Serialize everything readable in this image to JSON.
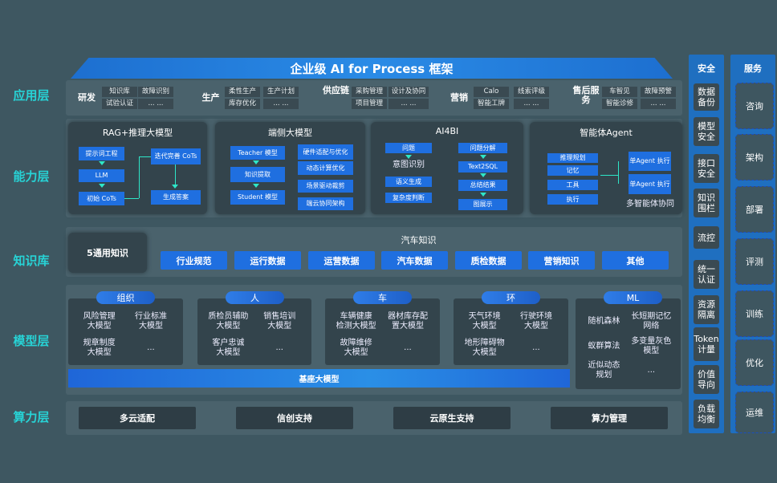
{
  "title": "企业级 AI for Process 框架",
  "layers": [
    "应用层",
    "能力层",
    "知识库",
    "模型层",
    "算力层"
  ],
  "app": [
    {
      "name": "研发",
      "cells": [
        "知识库",
        "故障识别",
        "试验认证",
        "... ..."
      ]
    },
    {
      "name": "生产",
      "cells": [
        "柔性生产",
        "生产计划",
        "库存优化",
        "... ..."
      ]
    },
    {
      "name": "供应链",
      "cells": [
        "采购管理",
        "设计及协同",
        "项目管理",
        "... ..."
      ]
    },
    {
      "name": "营销",
      "cells": [
        "Calo",
        "线索评级",
        "智能工牌",
        "... ..."
      ]
    },
    {
      "name": "售后服务",
      "cells": [
        "车智见",
        "故障预警",
        "智能诊修",
        "... ..."
      ]
    }
  ],
  "capability": {
    "rag": {
      "title": "RAG+推理大模型",
      "items": [
        "提示词工程",
        "LLM",
        "初始 CoTs",
        "迭代完善 CoTs",
        "生成答案"
      ]
    },
    "edge": {
      "title": "端侧大模型",
      "items": [
        "Teacher 模型",
        "知识提取",
        "Student 模型",
        "硬件适配与优化",
        "动态计算优化",
        "场景驱动裁剪",
        "端云协同架构"
      ]
    },
    "ai4bi": {
      "title": "AI4BI",
      "items": [
        "问题",
        "意图识别",
        "语义生成",
        "复杂度判断",
        "问题分解",
        "Text2SQL",
        "总结结果",
        "图展示"
      ]
    },
    "agent": {
      "title": "智能体Agent",
      "items": [
        "推理规划",
        "记忆",
        "工具",
        "执行",
        "单Agent 执行",
        "单Agent 执行"
      ],
      "caption": "多智能体协同"
    }
  },
  "knowledge": {
    "general": "5通用知识",
    "auto_title": "汽车知识",
    "items": [
      "行业规范",
      "运行数据",
      "运营数据",
      "汽车数据",
      "质检数据",
      "营销知识",
      "其他"
    ]
  },
  "models": [
    {
      "name": "组织",
      "items": [
        "风险管理\n大模型",
        "行业标准\n大模型",
        "规章制度\n大模型",
        "..."
      ]
    },
    {
      "name": "人",
      "items": [
        "质检员辅助\n大模型",
        "销售培训\n大模型",
        "客户忠诚\n大模型",
        "..."
      ]
    },
    {
      "name": "车",
      "items": [
        "车辆健康\n检测大模型",
        "器材库存配\n置大模型",
        "故障维修\n大模型",
        "..."
      ]
    },
    {
      "name": "环",
      "items": [
        "天气环境\n大模型",
        "行驶环境\n大模型",
        "地形障碍物\n大模型",
        "..."
      ]
    },
    {
      "name": "ML",
      "items": [
        "随机森林",
        "长短期记忆\n网络",
        "蚁群算法",
        "多变量灰色\n模型",
        "近似动态\n规划",
        "..."
      ]
    }
  ],
  "base_model": "基座大模型",
  "compute": [
    "多云适配",
    "信创支持",
    "云原生支持",
    "算力管理"
  ],
  "security": {
    "title": "安全",
    "items": [
      "数据\n备份",
      "模型\n安全",
      "接口\n安全",
      "知识\n围栏",
      "流控",
      "统一\n认证",
      "资源\n隔离",
      "Token\n计量",
      "价值\n导向",
      "负载\n均衡"
    ]
  },
  "service": {
    "title": "服务",
    "items": [
      "咨询",
      "架构",
      "部署",
      "评测",
      "训练",
      "优化",
      "运维"
    ]
  }
}
